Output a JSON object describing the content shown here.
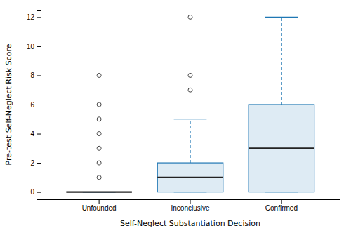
{
  "chart_data": {
    "type": "box",
    "categories": [
      "Unfounded",
      "Inconclusive",
      "Confirmed"
    ],
    "xlabel": "Self-Neglect Substantiation Decision",
    "ylabel": "Pre-test Self-Neglect Risk Score",
    "ylim": [
      -0.5,
      12.5
    ],
    "yticks": [
      0,
      2,
      4,
      6,
      8,
      10,
      12
    ],
    "boxes": [
      {
        "median": 0,
        "q1": 0,
        "q3": 0,
        "whisker_low": 0,
        "whisker_high": 0,
        "outliers": [
          1,
          2,
          3,
          4,
          5,
          6,
          8
        ]
      },
      {
        "median": 1,
        "q1": 0,
        "q3": 2,
        "whisker_low": 0,
        "whisker_high": 5,
        "outliers": [
          7,
          8,
          12
        ]
      },
      {
        "median": 3,
        "q1": 0,
        "q3": 6,
        "whisker_low": 0,
        "whisker_high": 12,
        "outliers": []
      }
    ]
  }
}
